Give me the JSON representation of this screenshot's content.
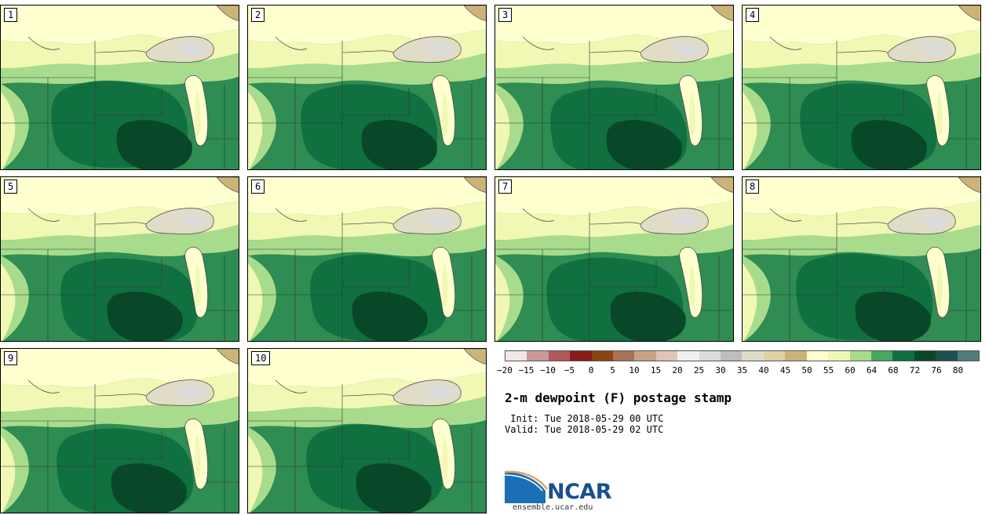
{
  "panels": [
    {
      "label": "1"
    },
    {
      "label": "2"
    },
    {
      "label": "3"
    },
    {
      "label": "4"
    },
    {
      "label": "5"
    },
    {
      "label": "6"
    },
    {
      "label": "7"
    },
    {
      "label": "8"
    },
    {
      "label": "9"
    },
    {
      "label": "10"
    }
  ],
  "colorbar": {
    "colors": [
      "#f3e6e6",
      "#cc9999",
      "#b25959",
      "#8b1a1a",
      "#8b4513",
      "#a87456",
      "#c8a088",
      "#e0c4b4",
      "#f0f0f0",
      "#dcdcdc",
      "#bebebe",
      "#e0dcc8",
      "#e0d0a4",
      "#ccb478",
      "#ffffcc",
      "#f0f8b4",
      "#a8dc8c",
      "#48a860",
      "#107040",
      "#084828",
      "#1e5050",
      "#507c7c"
    ],
    "ticks": [
      "−20",
      "−15",
      "−10",
      "−5",
      "0",
      "5",
      "10",
      "15",
      "20",
      "25",
      "30",
      "35",
      "40",
      "45",
      "50",
      "55",
      "60",
      "64",
      "68",
      "72",
      "76",
      "80"
    ]
  },
  "title": "2-m dewpoint (F) postage stamp",
  "init": " Init: Tue 2018-05-29 00 UTC",
  "valid": "Valid: Tue 2018-05-29 02 UTC",
  "logo": {
    "name": "NCAR",
    "url": "ensemble.ucar.edu"
  }
}
